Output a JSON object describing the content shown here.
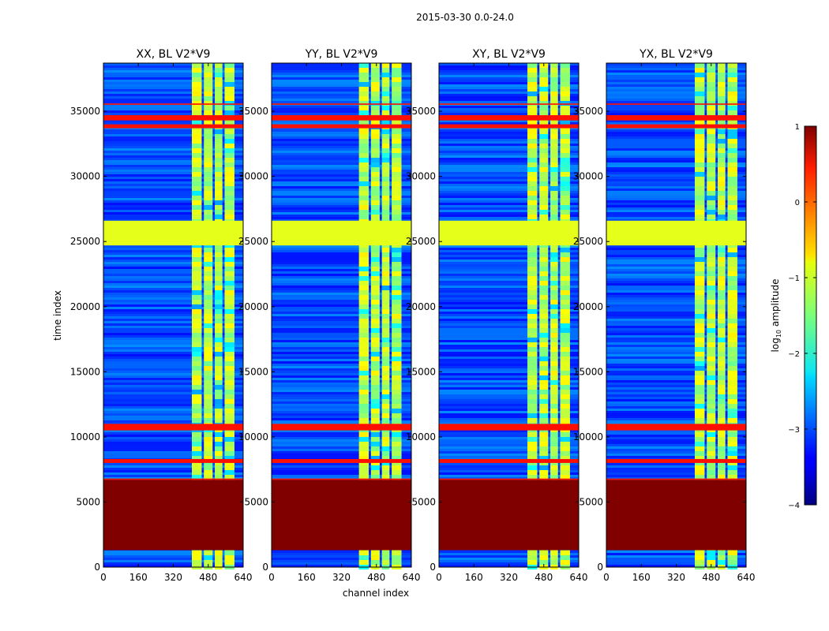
{
  "figure": {
    "suptitle": "2015-03-30 0.0-24.0",
    "xlabel": "channel index",
    "ylabel": "time index"
  },
  "chart_data": {
    "type": "heatmap",
    "xlim": [
      0,
      640
    ],
    "ylim": [
      0,
      38700
    ],
    "x_ticks": [
      0,
      160,
      320,
      480,
      640
    ],
    "x_tick_labels": [
      "0",
      "160",
      "320",
      "480",
      "640"
    ],
    "y_ticks": [
      0,
      5000,
      10000,
      15000,
      20000,
      25000,
      30000,
      35000
    ],
    "y_tick_labels": [
      "0",
      "5000",
      "10000",
      "15000",
      "20000",
      "25000",
      "30000",
      "35000"
    ],
    "panels": [
      {
        "title": "XX, BL V2*V9",
        "bright_channels": [
          [
            405,
            450
          ],
          [
            460,
            500
          ],
          [
            510,
            545
          ],
          [
            555,
            600
          ]
        ]
      },
      {
        "title": "YY, BL V2*V9",
        "bright_channels": [
          [
            400,
            445
          ],
          [
            455,
            495
          ],
          [
            505,
            540
          ],
          [
            550,
            595
          ]
        ]
      },
      {
        "title": "XY, BL V2*V9",
        "bright_channels": [
          [
            405,
            450
          ],
          [
            460,
            500
          ],
          [
            510,
            545
          ],
          [
            555,
            600
          ]
        ]
      },
      {
        "title": "YX, BL V2*V9",
        "bright_channels": [
          [
            405,
            450
          ],
          [
            460,
            500
          ],
          [
            510,
            545
          ],
          [
            555,
            600
          ]
        ]
      }
    ],
    "flagged_bands": [
      {
        "from": 1300,
        "to": 6700,
        "log_amp": 1.0
      },
      {
        "from": 24700,
        "to": 26600,
        "log_amp": -1.0
      },
      {
        "from": 10500,
        "to": 11000,
        "log_amp": 0.3
      },
      {
        "from": 8000,
        "to": 8300,
        "log_amp": 0.3
      },
      {
        "from": 34300,
        "to": 34700,
        "log_amp": 0.3
      },
      {
        "from": 33700,
        "to": 34000,
        "log_amp": 0.3
      },
      {
        "from": 35500,
        "to": 35600,
        "log_amp": 0.3
      },
      {
        "from": 6700,
        "to": 6800,
        "log_amp": 0.3
      }
    ],
    "colorbar": {
      "label_prefix": "log",
      "label_sub": "10",
      "label_suffix": " amplitude",
      "range": [
        -4,
        1
      ],
      "ticks": [
        1,
        0,
        -1,
        -2,
        -3,
        -4
      ],
      "tick_labels": [
        "1",
        "0",
        "−1",
        "−2",
        "−3",
        "−4"
      ]
    }
  }
}
